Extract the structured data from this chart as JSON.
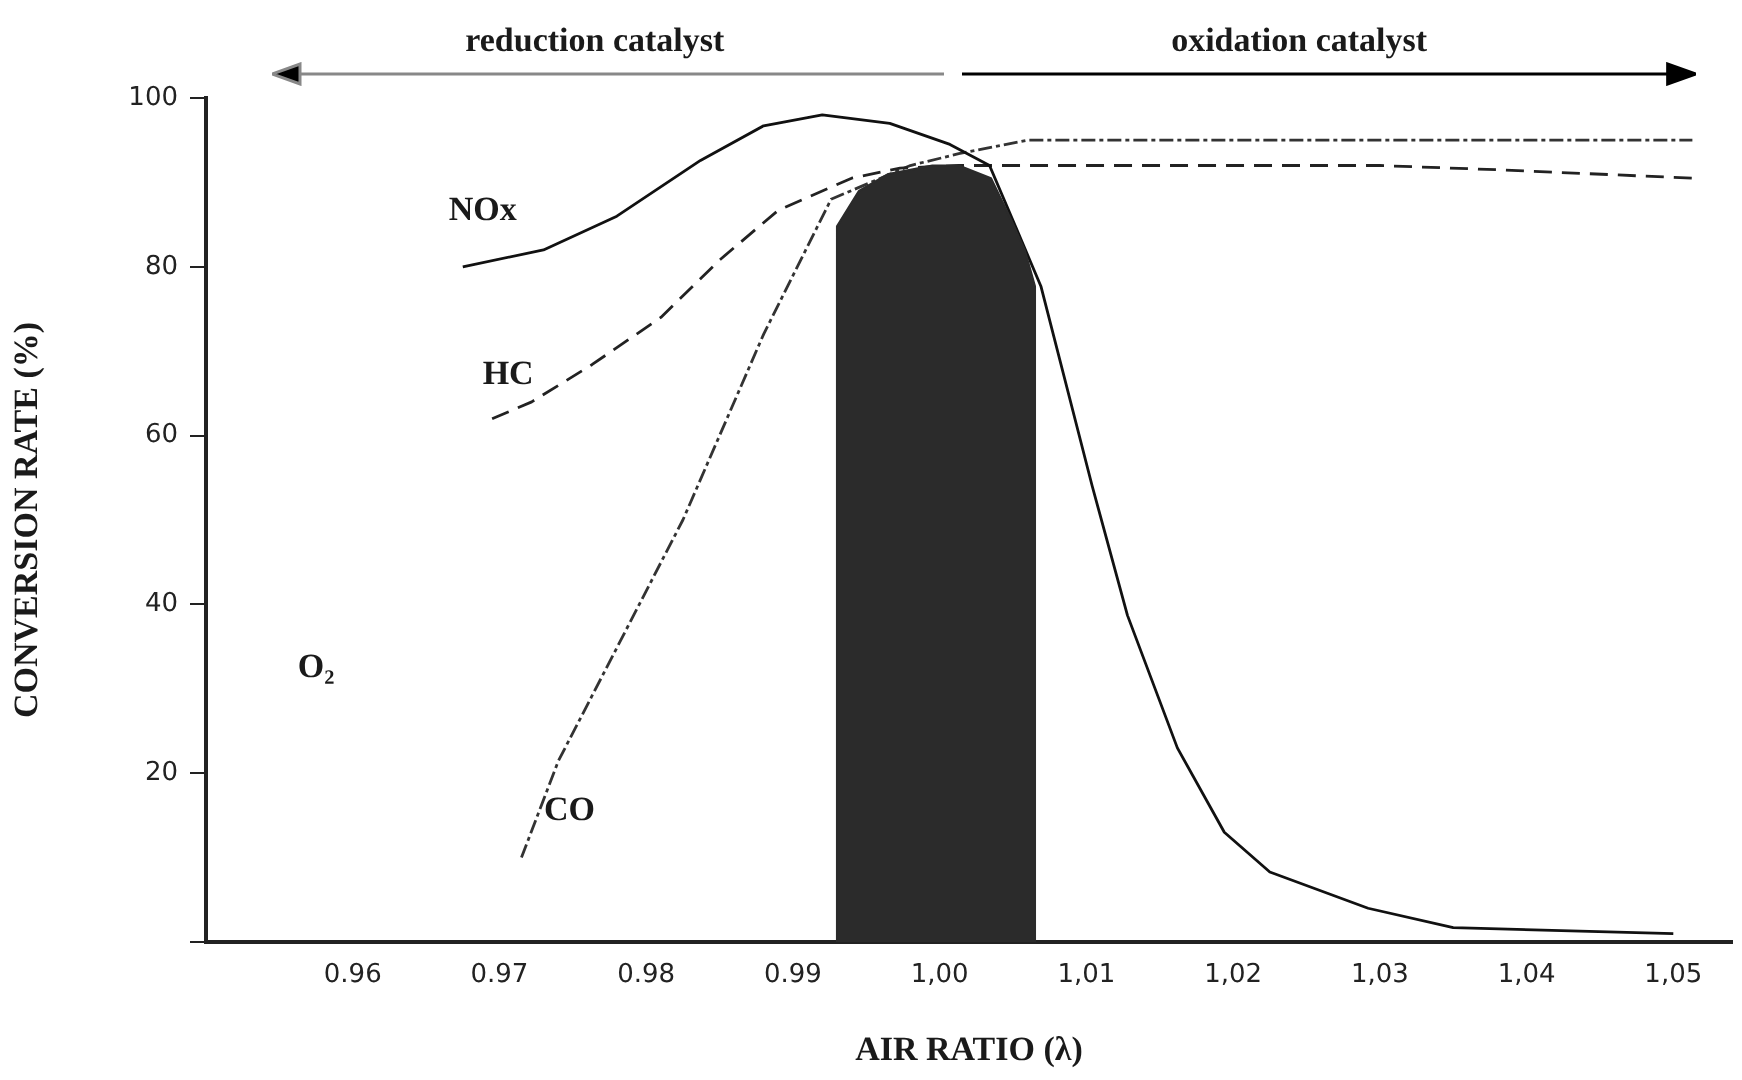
{
  "chart_data": {
    "type": "line",
    "xlabel": "AIR RATIO (λ)",
    "ylabel": "CONVERSION RATE (%)",
    "xlim": [
      0.95,
      1.054
    ],
    "ylim": [
      0,
      100
    ],
    "xticks": [
      0.96,
      0.97,
      0.98,
      0.99,
      {
        "value": 1.0,
        "label": "1,00"
      },
      {
        "value": 1.01,
        "label": "1,01"
      },
      {
        "value": 1.02,
        "label": "1,02"
      },
      {
        "value": 1.03,
        "label": "1,03"
      },
      {
        "value": 1.04,
        "label": "1,04"
      },
      {
        "value": 1.05,
        "label": "1,05"
      }
    ],
    "yticks": [
      {
        "value": 0,
        "label": null
      },
      20,
      40,
      60,
      80,
      100
    ],
    "annotations": [
      "reduction catalyst",
      "oxidation catalyst",
      "O₂"
    ],
    "series": [
      {
        "type": "area",
        "color": "#2b2b2b",
        "x": [
          0.993,
          0.993,
          0.9945,
          0.9965,
          0.9995,
          1.0013,
          1.0035,
          1.0049,
          1.0058,
          1.0065,
          1.0065
        ],
        "values": [
          0,
          84.8,
          89,
          91,
          92,
          92,
          90.5,
          85.5,
          82,
          77.7,
          0
        ]
      },
      {
        "name": "NOx",
        "color": "#111111",
        "line_style": "solid",
        "x": [
          0.9675,
          0.973,
          0.978,
          0.9837,
          0.988,
          0.992,
          0.9966,
          1.0007,
          1.0034,
          1.0069,
          1.0104,
          1.0128,
          1.0162,
          1.0194,
          1.0225,
          1.0292,
          1.035,
          1.05
        ],
        "values": [
          80,
          82,
          86,
          92.6,
          96.7,
          98,
          97,
          94.5,
          92,
          77.7,
          54,
          38.7,
          23,
          13,
          8.3,
          4,
          1.7,
          1
        ]
      },
      {
        "name": "HC",
        "color": "#222222",
        "line_style": "dashed",
        "x": [
          0.9695,
          0.9722,
          0.9763,
          0.981,
          0.985,
          0.989,
          0.994,
          0.9973,
          1.0013,
          1.0118,
          1.03,
          1.038,
          1.0513
        ],
        "values": [
          62,
          64,
          68.4,
          74,
          80.8,
          86.7,
          90.5,
          91.7,
          92,
          92,
          92,
          91.5,
          90.5
        ]
      },
      {
        "name": "CO",
        "color": "#333333",
        "line_style": "dashdot",
        "x": [
          0.9715,
          0.974,
          0.9825,
          0.988,
          0.9926,
          0.998,
          1.0013,
          1.006,
          1.03,
          1.0513
        ],
        "values": [
          10,
          21.4,
          50,
          72,
          88,
          92,
          93.4,
          95,
          95,
          95
        ]
      }
    ]
  }
}
